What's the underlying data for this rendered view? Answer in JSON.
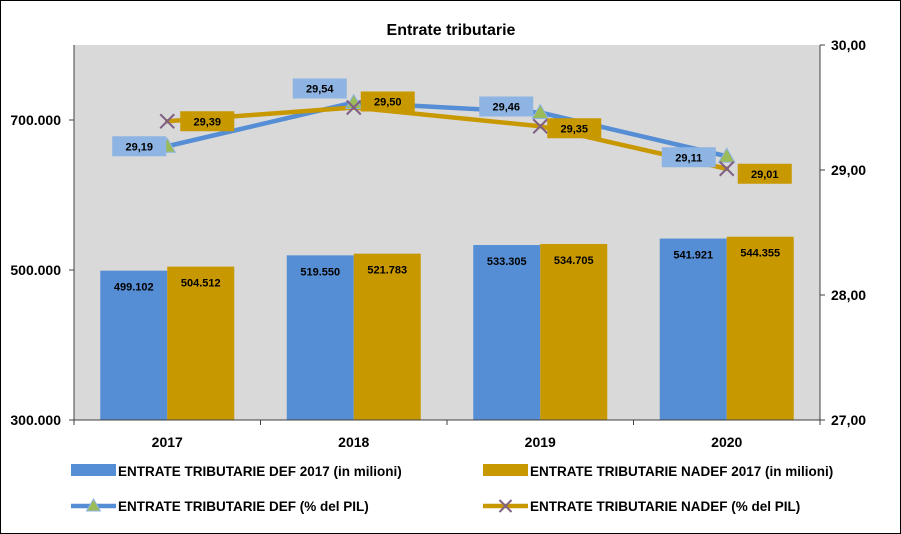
{
  "chart_data": {
    "type": "bar",
    "title": "Entrate tributarie",
    "categories": [
      "2017",
      "2018",
      "2019",
      "2020"
    ],
    "y_left": {
      "range": [
        300000,
        800000
      ],
      "ticks": [
        300000,
        500000,
        700000
      ],
      "tick_labels": [
        "300.000",
        "500.000",
        "700.000"
      ]
    },
    "y_right": {
      "range": [
        27,
        30
      ],
      "ticks": [
        27,
        28,
        29,
        30
      ],
      "tick_labels": [
        "27,00",
        "28,00",
        "29,00",
        "30,00"
      ]
    },
    "series": [
      {
        "name": "ENTRATE TRIBUTARIE DEF 2017 (in milioni)",
        "kind": "bar",
        "axis": "left",
        "color": "#558ED5",
        "values": [
          499102,
          519550,
          533305,
          541921
        ],
        "labels": [
          "499.102",
          "519.550",
          "533.305",
          "541.921"
        ]
      },
      {
        "name": "ENTRATE TRIBUTARIE NADEF 2017 (in milioni)",
        "kind": "bar",
        "axis": "left",
        "color": "#C89800",
        "values": [
          504512,
          521783,
          534705,
          544355
        ],
        "labels": [
          "504.512",
          "521.783",
          "534.705",
          "544.355"
        ]
      },
      {
        "name": "ENTRATE TRIBUTARIE DEF (% del PIL)",
        "kind": "line",
        "axis": "right",
        "marker": "triangle",
        "color": "#558ED5",
        "label_bg": "#8DB4E2",
        "values": [
          29.19,
          29.54,
          29.46,
          29.11
        ],
        "labels": [
          "29,19",
          "29,54",
          "29,46",
          "29,11"
        ]
      },
      {
        "name": "ENTRATE TRIBUTARIE NADEF (% del PIL)",
        "kind": "line",
        "axis": "right",
        "marker": "x",
        "color": "#C89800",
        "label_bg": "#C89800",
        "values": [
          29.39,
          29.5,
          29.35,
          29.01
        ],
        "labels": [
          "29,39",
          "29,50",
          "29,35",
          "29,01"
        ]
      }
    ],
    "plot_background": "#D9D9D9",
    "legend_position": "bottom",
    "grid": false
  }
}
